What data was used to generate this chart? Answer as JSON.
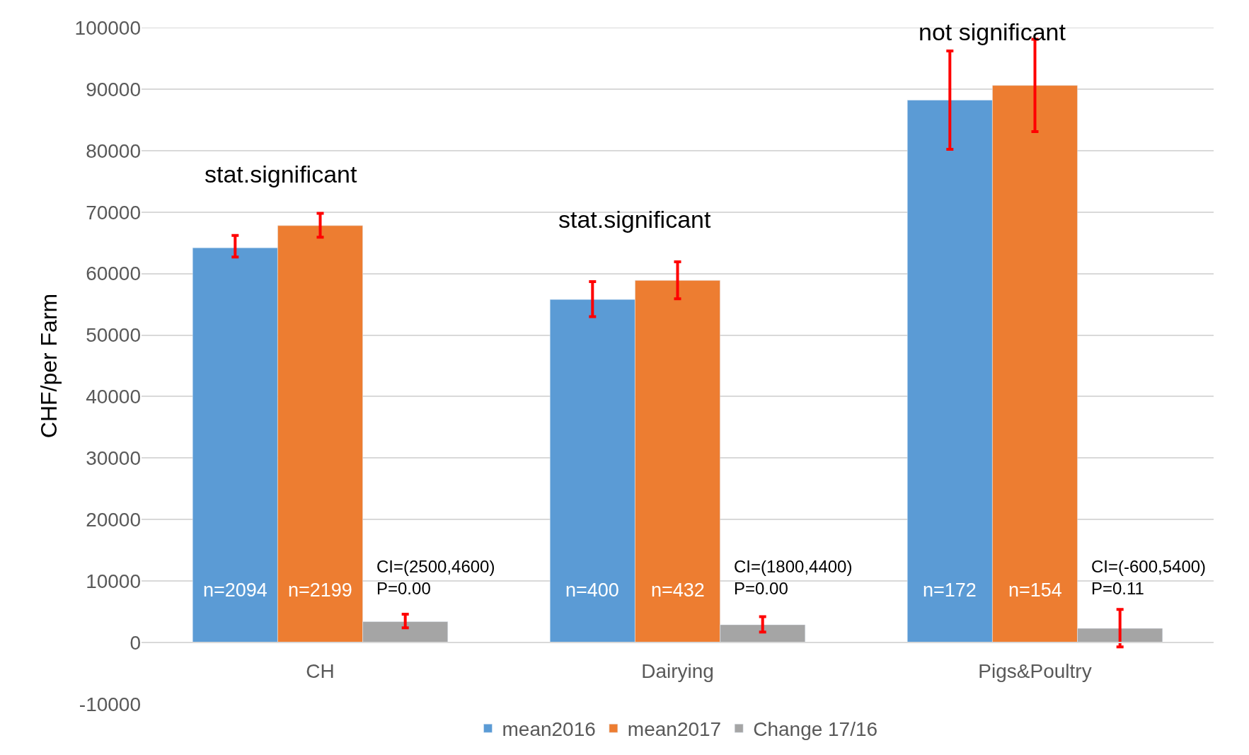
{
  "chart_data": {
    "type": "bar",
    "categories": [
      "CH",
      "Dairying",
      "Pigs&Poultry"
    ],
    "ylabel": "CHF/per Farm",
    "series": [
      {
        "name": "mean2016",
        "color": "#5b9bd5",
        "values": [
          64200,
          55800,
          88200
        ],
        "errors": [
          [
            62700,
            66200
          ],
          [
            53000,
            58700
          ],
          [
            80200,
            96200
          ]
        ]
      },
      {
        "name": "mean2017",
        "color": "#ed7d31",
        "values": [
          67800,
          58900,
          90600
        ],
        "errors": [
          [
            65900,
            69800
          ],
          [
            55900,
            61900
          ],
          [
            83100,
            98100
          ]
        ]
      },
      {
        "name": "Change 17/16",
        "color": "#a5a5a5",
        "values": [
          3400,
          2900,
          2300
        ],
        "errors": [
          [
            2400,
            4600
          ],
          [
            1700,
            4200
          ],
          [
            -700,
            5400
          ]
        ]
      }
    ],
    "annotations": [
      "stat.significant",
      "stat.significant",
      "not significant",
      "n=2094",
      "n=2199",
      "CI=(2500,4600)\nP=0.00",
      "n=400",
      "n=432",
      "CI=(1800,4400)\nP=0.00",
      "n=172",
      "n=154",
      "CI=(-600,5400)\nP=0.11"
    ],
    "ylim": [
      -10000,
      100000
    ],
    "yticks": [
      -10000,
      0,
      10000,
      20000,
      30000,
      40000,
      50000,
      60000,
      70000,
      80000,
      90000,
      100000
    ],
    "grid": "y",
    "legend": "bottom"
  }
}
